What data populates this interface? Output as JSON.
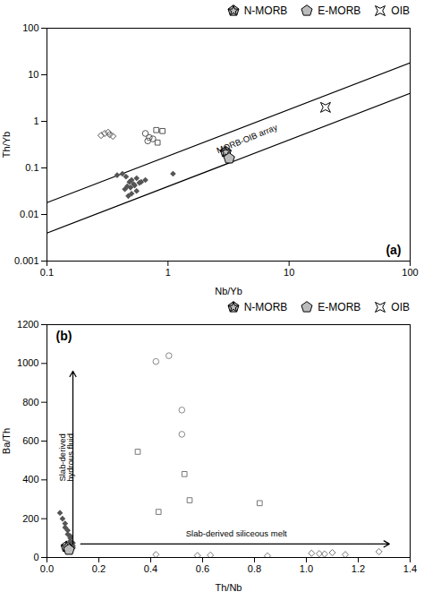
{
  "chart_data": [
    {
      "type": "scatter",
      "title": "(a)",
      "x_label": "Nb/Yb",
      "y_label": "Th/Yb",
      "log": true,
      "xlim": [
        0.1,
        100
      ],
      "ylim": [
        0.001,
        100
      ],
      "xticks": [
        0.1,
        1,
        10,
        100
      ],
      "yticks": [
        0.001,
        0.01,
        0.1,
        1,
        10,
        100
      ],
      "legend": "top",
      "series": [
        {
          "type": "line",
          "color": "#000000",
          "line_style": "solid",
          "x": [
            0.1,
            100
          ],
          "y": [
            0.004,
            4.0
          ]
        },
        {
          "type": "line",
          "color": "#000000",
          "line_style": "solid",
          "x": [
            0.1,
            100
          ],
          "y": [
            0.018,
            18.0
          ]
        },
        {
          "type": "scatter",
          "marker": "filled_diamond",
          "color": "#555555",
          "x": [
            0.38,
            0.42,
            0.45,
            0.5,
            0.55,
            0.48,
            0.52,
            0.46,
            0.44,
            0.49,
            0.53,
            0.58,
            0.6,
            0.55,
            0.5,
            0.47,
            1.1,
            0.65
          ],
          "y": [
            0.07,
            0.075,
            0.065,
            0.055,
            0.06,
            0.05,
            0.045,
            0.04,
            0.035,
            0.038,
            0.042,
            0.048,
            0.05,
            0.032,
            0.028,
            0.025,
            0.075,
            0.055
          ]
        },
        {
          "type": "scatter",
          "marker": "open_diamond",
          "color": "#555555",
          "x": [
            0.3,
            0.33,
            0.28,
            0.35,
            0.32
          ],
          "y": [
            0.55,
            0.52,
            0.5,
            0.48,
            0.58
          ]
        },
        {
          "type": "scatter",
          "marker": "open_circle",
          "color": "#555555",
          "x": [
            0.65,
            0.7,
            0.68,
            0.75
          ],
          "y": [
            0.55,
            0.45,
            0.38,
            0.42
          ]
        },
        {
          "type": "scatter",
          "marker": "open_square",
          "color": "#555555",
          "x": [
            0.8,
            0.9,
            0.82
          ],
          "y": [
            0.65,
            0.62,
            0.35
          ]
        },
        {
          "name": "N-MORB",
          "type": "scatter",
          "marker": "pentagon_star",
          "color": "#bbbbbb",
          "x": [
            3.0
          ],
          "y": [
            0.22
          ]
        },
        {
          "name": "E-MORB",
          "type": "scatter",
          "marker": "pentagon",
          "color": "#bbbbbb",
          "x": [
            3.2
          ],
          "y": [
            0.16
          ]
        },
        {
          "name": "OIB",
          "type": "scatter",
          "marker": "star4",
          "color": "#000000",
          "x": [
            20
          ],
          "y": [
            2.0
          ]
        }
      ],
      "arrows": [],
      "annotations": [
        {
          "text": "MORB-OIB array",
          "x": 4.5,
          "y": 0.32
        }
      ]
    },
    {
      "type": "scatter",
      "title": "(b)",
      "x_label": "Th/Nb",
      "y_label": "Ba/Th",
      "xlim": [
        0,
        1.4
      ],
      "ylim": [
        0,
        1200
      ],
      "xticks": [
        {
          "value": 0,
          "label": "0.0"
        },
        0.2,
        0.4,
        0.6,
        0.8,
        {
          "value": 1.0,
          "label": "1.0"
        },
        1.2,
        1.4
      ],
      "yticks": [
        0,
        200,
        400,
        600,
        800,
        1000,
        1200
      ],
      "legend": "top",
      "series": [
        {
          "type": "scatter",
          "marker": "open_circle",
          "color": "#888888",
          "x": [
            0.42,
            0.47,
            0.52,
            0.52
          ],
          "y": [
            1010,
            1040,
            760,
            635
          ]
        },
        {
          "type": "scatter",
          "marker": "open_square",
          "color": "#777777",
          "x": [
            0.35,
            0.43,
            0.53,
            0.55,
            0.82
          ],
          "y": [
            545,
            235,
            430,
            295,
            280
          ]
        },
        {
          "type": "scatter",
          "marker": "filled_diamond",
          "color": "#555555",
          "x": [
            0.05,
            0.06,
            0.07,
            0.07,
            0.08,
            0.08,
            0.09,
            0.09,
            0.09,
            0.1,
            0.1,
            0.1
          ],
          "y": [
            230,
            200,
            175,
            155,
            140,
            120,
            110,
            100,
            85,
            75,
            60,
            50
          ]
        },
        {
          "type": "scatter",
          "marker": "open_diamond",
          "color": "#777777",
          "x": [
            0.42,
            0.58,
            0.63,
            0.85,
            1.02,
            1.05,
            1.07,
            1.1,
            1.15,
            1.28
          ],
          "y": [
            15,
            10,
            12,
            8,
            22,
            20,
            18,
            25,
            15,
            30
          ]
        },
        {
          "name": "N-MORB",
          "type": "scatter",
          "marker": "pentagon_star",
          "color": "#bbbbbb",
          "x": [
            0.075
          ],
          "y": [
            55
          ]
        },
        {
          "name": "E-MORB",
          "type": "scatter",
          "marker": "pentagon",
          "color": "#bbbbbb",
          "x": [
            0.085
          ],
          "y": [
            40
          ]
        },
        {
          "name": "OIB",
          "type": "scatter",
          "marker": "star4",
          "color": "#000000",
          "x": [],
          "y": []
        }
      ],
      "arrows": [
        {
          "x_start": 0.1,
          "y_start": 70,
          "x_end": 0.1,
          "y_end": 960
        },
        {
          "x_start": 0.13,
          "y_start": 70,
          "x_end": 1.32,
          "y_end": 70
        }
      ],
      "annotations": [
        {
          "text": "Slab-derived\nhydrous fluid",
          "x": 0.075,
          "y": 515
        },
        {
          "text": "Slab-derived siliceous melt",
          "x": 0.73,
          "y": 110
        }
      ]
    }
  ]
}
